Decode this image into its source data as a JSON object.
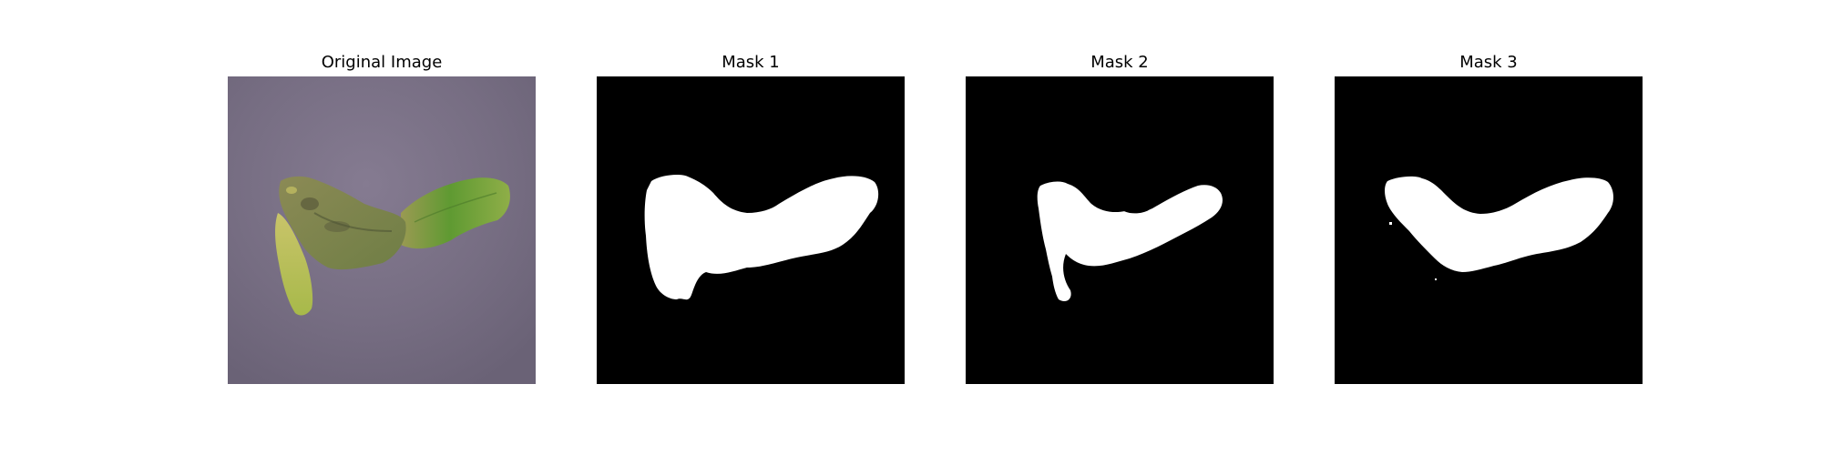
{
  "panels": [
    {
      "title": "Original Image",
      "kind": "photo"
    },
    {
      "title": "Mask 1",
      "kind": "mask"
    },
    {
      "title": "Mask 2",
      "kind": "mask"
    },
    {
      "title": "Mask 3",
      "kind": "mask"
    }
  ],
  "colors": {
    "background": "#ffffff",
    "mask_background": "#000000",
    "mask_foreground": "#ffffff",
    "surface": "#7a7186",
    "leaf_green": "#7fa43a",
    "leaf_yellow": "#c4c45a",
    "leaf_brown": "#7d7350"
  }
}
